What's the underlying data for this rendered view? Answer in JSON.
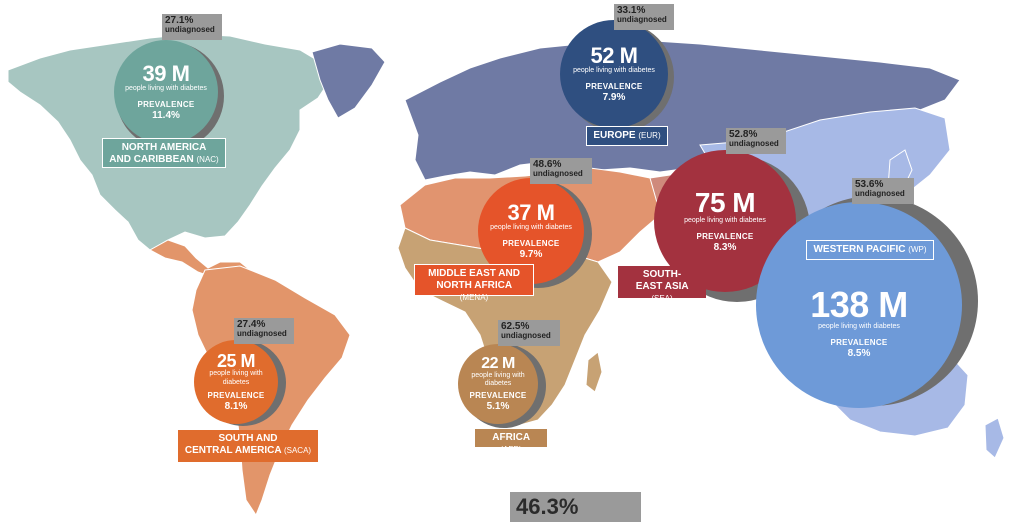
{
  "colors": {
    "nac": "#6ea59c",
    "eur": "#2f4f80",
    "mena": "#e5542a",
    "sea": "#a3323f",
    "wp": "#6e9ad8",
    "saca": "#e06c2d",
    "afr": "#b98653",
    "ring": "#6f6f6f",
    "undiag_box": "#9a9a9a",
    "land_nac": "#a7c6c1",
    "land_eur": "#6f7aa4",
    "land_mena": "#e1946f",
    "land_afr": "#c7a274",
    "land_saca": "#e2956a",
    "land_wp": "#a7b9e6",
    "land_sea": "#cf8a7c"
  },
  "regions": [
    {
      "id": "nac",
      "people": "39 M",
      "people_label": "people living with diabetes",
      "prevalence_label": "PREVALENCE",
      "prevalence": "11.4%",
      "undiagnosed_pct": "27.1%",
      "undiagnosed_label": "undiagnosed",
      "name_line1": "NORTH AMERICA",
      "name_line2": "AND CARIBBEAN",
      "code": "(NAC)"
    },
    {
      "id": "eur",
      "people": "52 M",
      "people_label": "people living with diabetes",
      "prevalence_label": "PREVALENCE",
      "prevalence": "7.9%",
      "undiagnosed_pct": "33.1%",
      "undiagnosed_label": "undiagnosed",
      "name_line1": "EUROPE",
      "name_line2": "",
      "code": "(EUR)"
    },
    {
      "id": "mena",
      "people": "37 M",
      "people_label": "people living with diabetes",
      "prevalence_label": "PREVALENCE",
      "prevalence": "9.7%",
      "undiagnosed_pct": "48.6%",
      "undiagnosed_label": "undiagnosed",
      "name_line1": "MIDDLE EAST AND",
      "name_line2": "NORTH AFRICA",
      "code": "(MENA)"
    },
    {
      "id": "sea",
      "people": "75 M",
      "people_label": "people living with diabetes",
      "prevalence_label": "PREVALENCE",
      "prevalence": "8.3%",
      "undiagnosed_pct": "52.8%",
      "undiagnosed_label": "undiagnosed",
      "name_line1": "SOUTH-",
      "name_line2": "EAST ASIA",
      "code": "(SEA)"
    },
    {
      "id": "wp",
      "people": "138 M",
      "people_label": "people living with diabetes",
      "prevalence_label": "PREVALENCE",
      "prevalence": "8.5%",
      "undiagnosed_pct": "53.6%",
      "undiagnosed_label": "undiagnosed",
      "name_line1": "WESTERN PACIFIC",
      "name_line2": "",
      "code": "(WP)"
    },
    {
      "id": "saca",
      "people": "25 M",
      "people_label": "people living with diabetes",
      "prevalence_label": "PREVALENCE",
      "prevalence": "8.1%",
      "undiagnosed_pct": "27.4%",
      "undiagnosed_label": "undiagnosed",
      "name_line1": "SOUTH AND",
      "name_line2": "CENTRAL AMERICA",
      "code": "(SACA)"
    },
    {
      "id": "afr",
      "people": "22 M",
      "people_label": "people living with diabetes",
      "prevalence_label": "PREVALENCE",
      "prevalence": "5.1%",
      "undiagnosed_pct": "62.5%",
      "undiagnosed_label": "undiagnosed",
      "name_line1": "AFRICA",
      "name_line2": "",
      "code": "(AFR)"
    }
  ],
  "global_undiagnosed": "46.3%"
}
